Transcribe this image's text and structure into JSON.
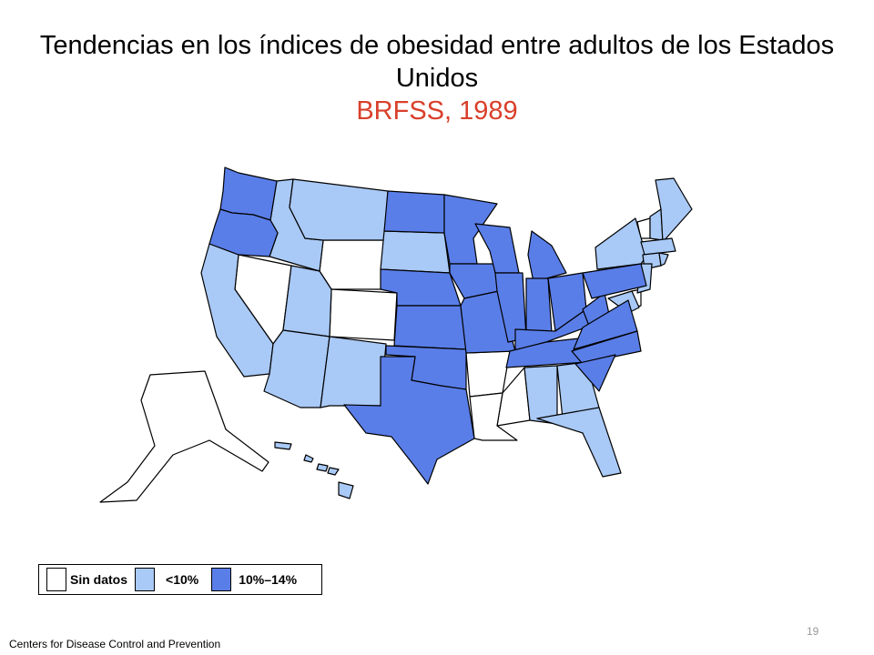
{
  "title": "Tendencias en los índices de obesidad entre adultos de los Estados Unidos",
  "subtitle": "BRFSS, 1989",
  "legend": {
    "no_data": {
      "label": "Sin datos",
      "color": "#ffffff"
    },
    "low": {
      "label": "<10%",
      "color": "#a9c9f6"
    },
    "mid": {
      "label": "10%–14%",
      "color": "#5a7ee8"
    }
  },
  "footer": "Centers for Disease Control and Prevention",
  "page_number": "19",
  "states": {
    "no_data": [
      "NV",
      "WY",
      "CO",
      "AR",
      "MS",
      "LA",
      "DE",
      "VT",
      "AK"
    ],
    "low": [
      "CA",
      "ID",
      "MT",
      "UT",
      "AZ",
      "NM",
      "SD",
      "AL",
      "GA",
      "FL",
      "NY",
      "NH",
      "ME",
      "MA",
      "CT",
      "RI",
      "NJ",
      "MD",
      "HI"
    ],
    "mid": [
      "WA",
      "OR",
      "ND",
      "NE",
      "KS",
      "OK",
      "TX",
      "MN",
      "IA",
      "MO",
      "WI",
      "IL",
      "MI",
      "IN",
      "OH",
      "KY",
      "TN",
      "WV",
      "VA",
      "NC",
      "SC",
      "PA"
    ]
  }
}
